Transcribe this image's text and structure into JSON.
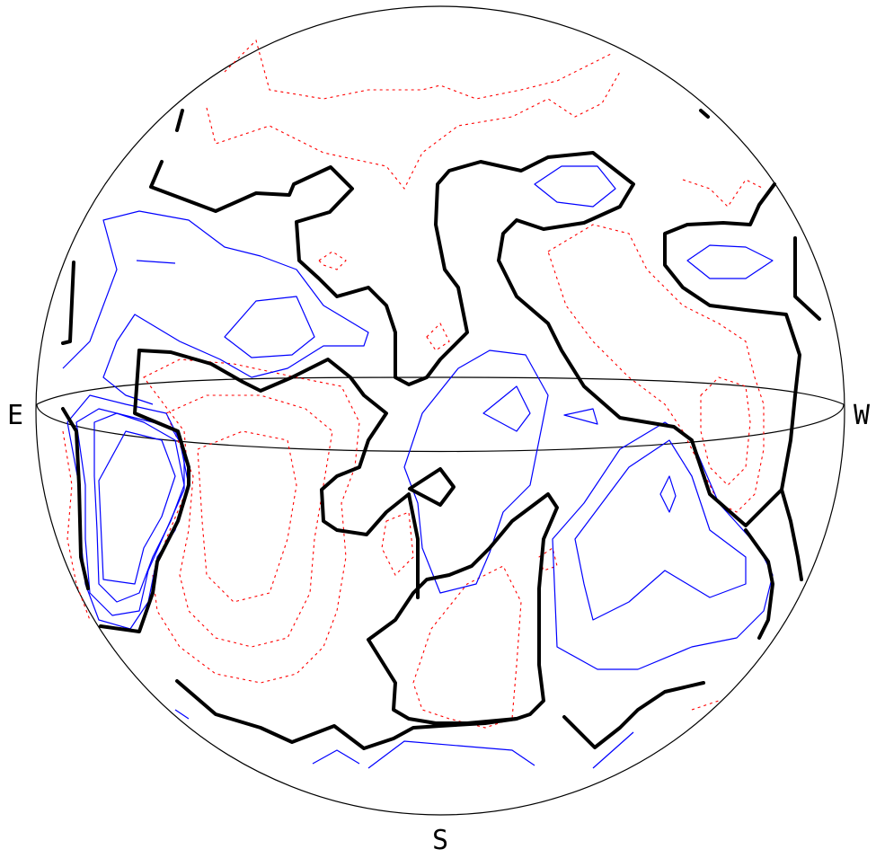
{
  "diagram": {
    "labels": {
      "east": "E",
      "west": "W",
      "south": "S"
    },
    "colors": {
      "zero_contour": "#000000",
      "positive_contour": "#0000ff",
      "negative_contour": "#ff0000",
      "outline": "#000000"
    }
  }
}
